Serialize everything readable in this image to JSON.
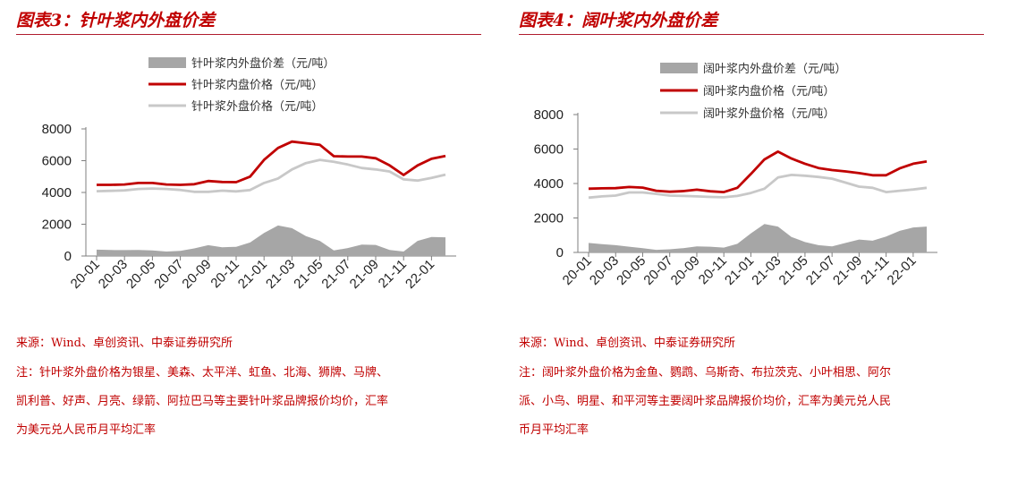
{
  "panels": [
    {
      "title": "图表3：针叶浆内外盘价差",
      "source": "来源：Wind、卓创资讯、中泰证券研究所",
      "note_lines": [
        "注：针叶浆外盘价格为银星、美森、太平洋、虹鱼、北海、狮牌、马牌、",
        "凯利普、好声、月亮、绿箭、阿拉巴马等主要针叶浆品牌报价均价，汇率",
        "为美元兑人民币月平均汇率"
      ]
    },
    {
      "title": "图表4：阔叶浆内外盘价差",
      "source": "来源：Wind、卓创资讯、中泰证券研究所",
      "note_lines": [
        "注：阔叶浆外盘价格为金鱼、鹦鹉、乌斯奇、布拉茨克、小叶相思、阿尔",
        "派、小鸟、明星、和平河等主要阔叶浆品牌报价均价，汇率为美元兑人民",
        "币月平均汇率"
      ]
    }
  ],
  "colors": {
    "title": "#c00000",
    "rule": "#b01c2e",
    "spread": "#a6a6a6",
    "domestic": "#c00000",
    "foreign": "#c8c8c8"
  },
  "chart_data": [
    {
      "type": "line",
      "legend_position": "top",
      "x": [
        "20-01",
        "20-02",
        "20-03",
        "20-04",
        "20-05",
        "20-06",
        "20-07",
        "20-08",
        "20-09",
        "20-10",
        "20-11",
        "20-12",
        "21-01",
        "21-02",
        "21-03",
        "21-04",
        "21-05",
        "21-06",
        "21-07",
        "21-08",
        "21-09",
        "21-10",
        "21-11",
        "21-12",
        "22-01",
        "22-02"
      ],
      "x_tick_labels": [
        "20-01",
        "20-03",
        "20-05",
        "20-07",
        "20-09",
        "20-11",
        "21-01",
        "21-03",
        "21-05",
        "21-07",
        "21-09",
        "21-11",
        "22-01"
      ],
      "y_ticks": [
        0,
        2000,
        4000,
        6000,
        8000
      ],
      "ylim": [
        0,
        8000
      ],
      "grid": false,
      "series": [
        {
          "name": "针叶浆内外盘价差（元/吨）",
          "type": "area",
          "values": [
            400,
            380,
            370,
            380,
            350,
            280,
            320,
            480,
            680,
            550,
            580,
            850,
            1450,
            1920,
            1750,
            1250,
            950,
            350,
            500,
            720,
            700,
            380,
            280,
            950,
            1200,
            1180
          ]
        },
        {
          "name": "针叶浆内盘价格（元/吨）",
          "type": "line",
          "values": [
            4480,
            4480,
            4500,
            4600,
            4600,
            4500,
            4480,
            4520,
            4720,
            4660,
            4650,
            5000,
            6050,
            6800,
            7200,
            7100,
            7000,
            6280,
            6260,
            6260,
            6150,
            5700,
            5100,
            5700,
            6120,
            6300
          ]
        },
        {
          "name": "针叶浆外盘价格（元/吨）",
          "type": "line",
          "values": [
            4080,
            4100,
            4130,
            4220,
            4250,
            4220,
            4160,
            4040,
            4040,
            4110,
            4070,
            4150,
            4600,
            4880,
            5450,
            5850,
            6050,
            5930,
            5760,
            5540,
            5450,
            5320,
            4820,
            4750,
            4920,
            5120
          ]
        }
      ]
    },
    {
      "type": "line",
      "legend_position": "top",
      "x": [
        "20-01",
        "20-02",
        "20-03",
        "20-04",
        "20-05",
        "20-06",
        "20-07",
        "20-08",
        "20-09",
        "20-10",
        "20-11",
        "20-12",
        "21-01",
        "21-02",
        "21-03",
        "21-04",
        "21-05",
        "21-06",
        "21-07",
        "21-08",
        "21-09",
        "21-10",
        "21-11",
        "21-12",
        "22-01",
        "22-02"
      ],
      "x_tick_labels": [
        "20-01",
        "20-03",
        "20-05",
        "20-07",
        "20-09",
        "20-11",
        "21-01",
        "21-03",
        "21-05",
        "21-07",
        "21-09",
        "21-11",
        "22-01"
      ],
      "y_ticks": [
        0,
        2000,
        4000,
        6000,
        8000
      ],
      "ylim": [
        0,
        8000
      ],
      "grid": false,
      "series": [
        {
          "name": "阔叶浆内外盘价差（元/吨）",
          "type": "area",
          "values": [
            550,
            480,
            420,
            330,
            250,
            150,
            180,
            250,
            350,
            330,
            280,
            500,
            1100,
            1650,
            1500,
            900,
            600,
            420,
            350,
            550,
            750,
            680,
            920,
            1250,
            1450,
            1500
          ]
        },
        {
          "name": "阔叶浆内盘价格（元/吨）",
          "type": "line",
          "values": [
            3700,
            3720,
            3730,
            3800,
            3760,
            3580,
            3520,
            3560,
            3640,
            3550,
            3500,
            3750,
            4550,
            5400,
            5850,
            5450,
            5150,
            4900,
            4780,
            4700,
            4600,
            4480,
            4480,
            4880,
            5150,
            5280
          ]
        },
        {
          "name": "阔叶浆外盘价格（元/吨）",
          "type": "line",
          "values": [
            3180,
            3250,
            3300,
            3480,
            3480,
            3400,
            3300,
            3280,
            3250,
            3220,
            3200,
            3280,
            3450,
            3700,
            4350,
            4500,
            4450,
            4380,
            4280,
            4050,
            3820,
            3750,
            3500,
            3580,
            3650,
            3750
          ]
        }
      ]
    }
  ]
}
